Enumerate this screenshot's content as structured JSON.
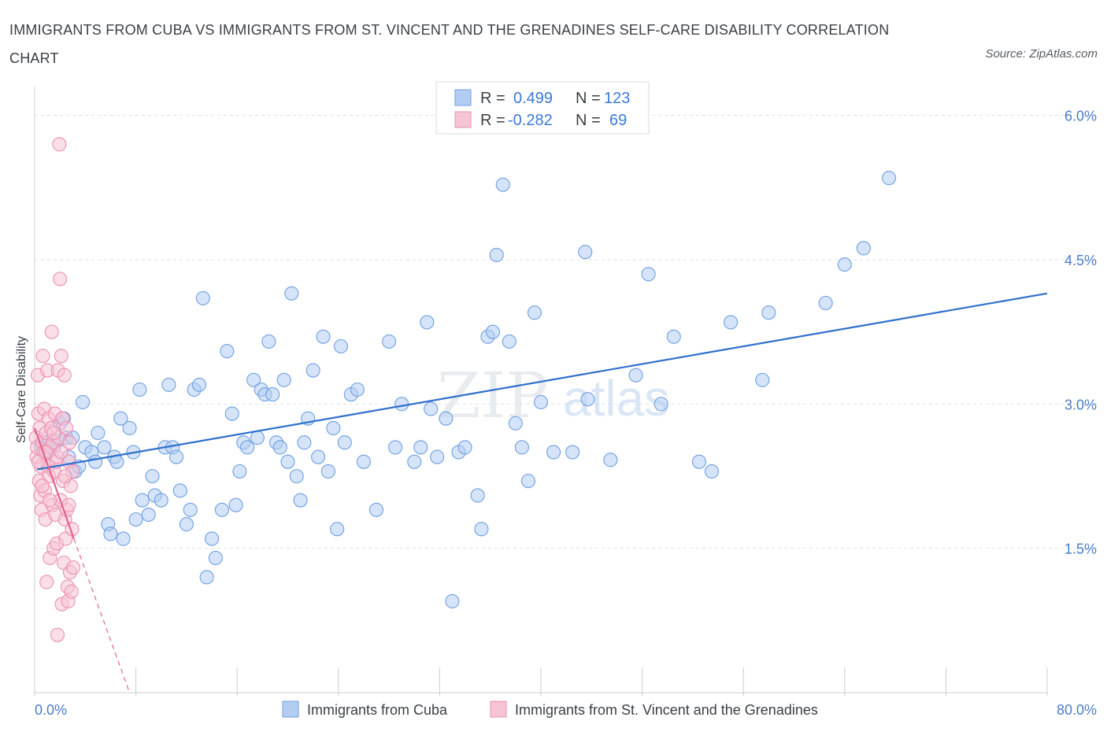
{
  "chart_data": {
    "type": "scatter",
    "title": "IMMIGRANTS FROM CUBA VS IMMIGRANTS FROM ST. VINCENT AND THE GRENADINES SELF-CARE DISABILITY CORRELATION CHART",
    "source": "Source: ZipAtlas.com",
    "ylabel": "Self-Care Disability",
    "xlim": [
      0,
      80
    ],
    "ylim": [
      0,
      6.3
    ],
    "x_tick_labels": [
      "0.0%",
      "80.0%"
    ],
    "y_ticks": [
      1.5,
      3.0,
      4.5,
      6.0
    ],
    "y_tick_labels": [
      "1.5%",
      "3.0%",
      "4.5%",
      "6.0%"
    ],
    "grid": true,
    "watermark": {
      "zip": "ZIP",
      "atlas": "atlas"
    },
    "legend": {
      "r_label": "R =",
      "n_label": "N =",
      "entries": [
        {
          "r": "0.499",
          "n": "123"
        },
        {
          "r": "-0.282",
          "n": "69"
        }
      ]
    },
    "series": [
      {
        "name": "Immigrants from Cuba",
        "color": "#6f9fe3",
        "fill": "#b3cdf2",
        "trend": {
          "x0": 0.2,
          "y0": 2.32,
          "x1": 80.0,
          "y1": 4.15,
          "color": "#2f6fcd"
        },
        "points": [
          [
            0.5,
            2.55
          ],
          [
            0.8,
            2.6
          ],
          [
            1.0,
            2.5
          ],
          [
            1.2,
            2.62
          ],
          [
            1.5,
            2.55
          ],
          [
            1.8,
            2.62
          ],
          [
            2.0,
            2.8
          ],
          [
            2.3,
            2.85
          ],
          [
            2.5,
            2.65
          ],
          [
            2.7,
            2.45
          ],
          [
            3.0,
            2.65
          ],
          [
            3.2,
            2.3
          ],
          [
            3.5,
            2.35
          ],
          [
            3.8,
            3.02
          ],
          [
            4.0,
            2.55
          ],
          [
            4.5,
            2.5
          ],
          [
            4.8,
            2.4
          ],
          [
            5.0,
            2.7
          ],
          [
            5.5,
            2.55
          ],
          [
            5.8,
            1.75
          ],
          [
            6.0,
            1.65
          ],
          [
            6.3,
            2.45
          ],
          [
            6.5,
            2.4
          ],
          [
            6.8,
            2.85
          ],
          [
            7.0,
            1.6
          ],
          [
            7.5,
            2.75
          ],
          [
            7.8,
            2.5
          ],
          [
            8.0,
            1.8
          ],
          [
            8.3,
            3.15
          ],
          [
            8.5,
            2.0
          ],
          [
            9.0,
            1.85
          ],
          [
            9.3,
            2.25
          ],
          [
            9.5,
            2.05
          ],
          [
            10.0,
            2.0
          ],
          [
            10.3,
            2.55
          ],
          [
            10.6,
            3.2
          ],
          [
            10.9,
            2.55
          ],
          [
            11.2,
            2.45
          ],
          [
            11.5,
            2.1
          ],
          [
            12.0,
            1.75
          ],
          [
            12.3,
            1.9
          ],
          [
            12.6,
            3.15
          ],
          [
            13.0,
            3.2
          ],
          [
            13.3,
            4.1
          ],
          [
            13.6,
            1.2
          ],
          [
            14.0,
            1.6
          ],
          [
            14.3,
            1.4
          ],
          [
            14.8,
            1.9
          ],
          [
            15.2,
            3.55
          ],
          [
            15.6,
            2.9
          ],
          [
            15.9,
            1.95
          ],
          [
            16.2,
            2.3
          ],
          [
            16.5,
            2.6
          ],
          [
            16.8,
            2.55
          ],
          [
            17.3,
            3.25
          ],
          [
            17.6,
            2.65
          ],
          [
            17.9,
            3.15
          ],
          [
            18.2,
            3.1
          ],
          [
            18.5,
            3.65
          ],
          [
            18.8,
            3.1
          ],
          [
            19.1,
            2.6
          ],
          [
            19.4,
            2.55
          ],
          [
            19.7,
            3.25
          ],
          [
            20.0,
            2.4
          ],
          [
            20.3,
            4.15
          ],
          [
            20.7,
            2.25
          ],
          [
            21.0,
            2.0
          ],
          [
            21.3,
            2.6
          ],
          [
            21.6,
            2.85
          ],
          [
            22.0,
            3.35
          ],
          [
            22.4,
            2.45
          ],
          [
            22.8,
            3.7
          ],
          [
            23.2,
            2.3
          ],
          [
            23.6,
            2.75
          ],
          [
            23.9,
            1.7
          ],
          [
            24.2,
            3.6
          ],
          [
            24.5,
            2.6
          ],
          [
            25.0,
            3.1
          ],
          [
            25.5,
            3.15
          ],
          [
            26.0,
            2.4
          ],
          [
            27.0,
            1.9
          ],
          [
            28.0,
            3.65
          ],
          [
            28.5,
            2.55
          ],
          [
            29.0,
            3.0
          ],
          [
            30.0,
            2.4
          ],
          [
            30.5,
            2.55
          ],
          [
            31.0,
            3.85
          ],
          [
            31.3,
            2.95
          ],
          [
            31.8,
            2.45
          ],
          [
            32.5,
            2.85
          ],
          [
            33.0,
            0.95
          ],
          [
            33.5,
            2.5
          ],
          [
            34.0,
            2.55
          ],
          [
            35.0,
            2.05
          ],
          [
            35.3,
            1.7
          ],
          [
            35.8,
            3.7
          ],
          [
            36.2,
            3.75
          ],
          [
            36.5,
            4.55
          ],
          [
            37.0,
            5.28
          ],
          [
            37.5,
            3.65
          ],
          [
            38.0,
            2.8
          ],
          [
            38.5,
            2.55
          ],
          [
            39.0,
            2.2
          ],
          [
            39.5,
            3.95
          ],
          [
            40.0,
            3.02
          ],
          [
            41.0,
            2.5
          ],
          [
            42.5,
            2.5
          ],
          [
            43.5,
            4.58
          ],
          [
            43.7,
            3.05
          ],
          [
            45.5,
            2.42
          ],
          [
            47.5,
            3.3
          ],
          [
            48.5,
            4.35
          ],
          [
            49.5,
            3.0
          ],
          [
            50.5,
            3.7
          ],
          [
            52.5,
            2.4
          ],
          [
            53.5,
            2.3
          ],
          [
            55.0,
            3.85
          ],
          [
            57.5,
            3.25
          ],
          [
            58.0,
            3.95
          ],
          [
            62.5,
            4.05
          ],
          [
            64.0,
            4.45
          ],
          [
            65.5,
            4.62
          ],
          [
            67.5,
            5.35
          ]
        ]
      },
      {
        "name": "Immigrants from St. Vincent and the Grenadines",
        "color": "#ee8fb0",
        "fill": "#f6c4d5",
        "trend": {
          "x0": 0.0,
          "y0": 2.75,
          "x1": 3.1,
          "y1": 1.6,
          "color": "#e3628e",
          "dash_to": [
            7.5,
            0.0
          ]
        },
        "points": [
          [
            0.1,
            2.65
          ],
          [
            0.15,
            2.45
          ],
          [
            0.2,
            2.55
          ],
          [
            0.25,
            3.3
          ],
          [
            0.3,
            2.9
          ],
          [
            0.35,
            2.2
          ],
          [
            0.4,
            2.75
          ],
          [
            0.45,
            2.05
          ],
          [
            0.5,
            2.35
          ],
          [
            0.55,
            1.9
          ],
          [
            0.6,
            2.6
          ],
          [
            0.65,
            3.5
          ],
          [
            0.7,
            2.5
          ],
          [
            0.75,
            2.95
          ],
          [
            0.8,
            2.1
          ],
          [
            0.85,
            1.8
          ],
          [
            0.9,
            2.7
          ],
          [
            0.95,
            1.15
          ],
          [
            1.0,
            3.35
          ],
          [
            1.05,
            2.35
          ],
          [
            1.1,
            2.85
          ],
          [
            1.15,
            2.25
          ],
          [
            1.2,
            1.4
          ],
          [
            1.25,
            2.55
          ],
          [
            1.3,
            2.75
          ],
          [
            1.35,
            3.75
          ],
          [
            1.4,
            1.95
          ],
          [
            1.45,
            2.6
          ],
          [
            1.5,
            1.5
          ],
          [
            1.55,
            2.3
          ],
          [
            1.6,
            2.9
          ],
          [
            1.65,
            1.85
          ],
          [
            1.7,
            2.4
          ],
          [
            1.75,
            1.55
          ],
          [
            1.8,
            0.6
          ],
          [
            1.85,
            3.35
          ],
          [
            1.9,
            2.65
          ],
          [
            1.95,
            5.7
          ],
          [
            2.0,
            4.3
          ],
          [
            2.05,
            2.0
          ],
          [
            2.1,
            3.5
          ],
          [
            2.15,
            0.92
          ],
          [
            2.2,
            2.85
          ],
          [
            2.25,
            2.2
          ],
          [
            2.3,
            1.35
          ],
          [
            2.35,
            3.3
          ],
          [
            2.4,
            1.8
          ],
          [
            2.45,
            1.6
          ],
          [
            2.5,
            2.75
          ],
          [
            2.55,
            1.9
          ],
          [
            2.6,
            1.1
          ],
          [
            2.65,
            0.95
          ],
          [
            2.7,
            2.4
          ],
          [
            2.75,
            2.6
          ],
          [
            2.8,
            1.25
          ],
          [
            2.85,
            2.15
          ],
          [
            2.9,
            1.05
          ],
          [
            2.95,
            1.7
          ],
          [
            3.0,
            2.3
          ],
          [
            3.05,
            1.3
          ],
          [
            0.3,
            2.4
          ],
          [
            0.6,
            2.15
          ],
          [
            0.9,
            2.5
          ],
          [
            1.2,
            2.0
          ],
          [
            1.5,
            2.7
          ],
          [
            1.8,
            2.45
          ],
          [
            2.1,
            2.5
          ],
          [
            2.4,
            2.25
          ],
          [
            2.7,
            1.95
          ]
        ]
      }
    ]
  }
}
